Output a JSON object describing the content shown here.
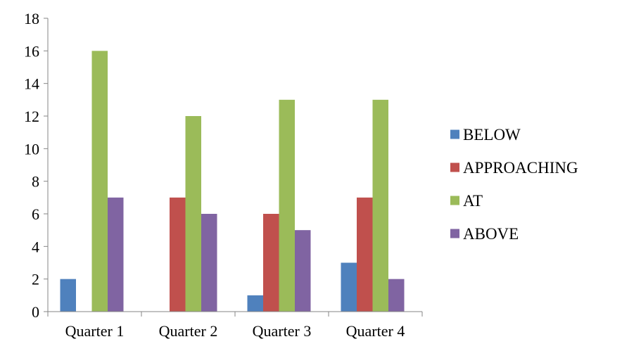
{
  "chart_data": {
    "type": "bar",
    "categories": [
      "Quarter 1",
      "Quarter 2",
      "Quarter 3",
      "Quarter 4"
    ],
    "series": [
      {
        "name": "BELOW",
        "values": [
          2,
          0,
          1,
          3
        ],
        "color": "#4F81BD"
      },
      {
        "name": "APPROACHING",
        "values": [
          0,
          7,
          6,
          7
        ],
        "color": "#C0504D"
      },
      {
        "name": "AT",
        "values": [
          16,
          12,
          13,
          13
        ],
        "color": "#9BBB59"
      },
      {
        "name": "ABOVE",
        "values": [
          7,
          6,
          5,
          2
        ],
        "color": "#8064A2"
      }
    ],
    "ylim": [
      0,
      18
    ],
    "yticks": [
      0,
      2,
      4,
      6,
      8,
      10,
      12,
      14,
      16,
      18
    ],
    "grid": false,
    "legend": "right"
  }
}
